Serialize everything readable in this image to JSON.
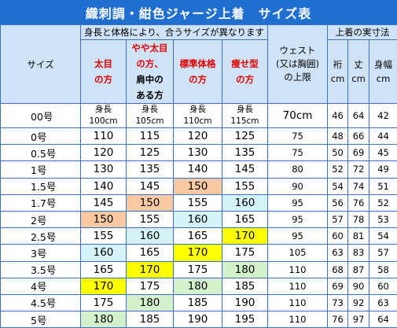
{
  "title": "織刺調・紺色ジャージ上着　サイズ表",
  "header": {
    "size": "サイズ",
    "group": "身長と体格により、合うサイズが異なります",
    "waist": "ウェスト\n(又は胸囲)\nの上限",
    "actual": "上着の実寸法",
    "m1": "裄\ncm",
    "m2": "丈\ncm",
    "m3": "身幅\ncm"
  },
  "builds": [
    "太目\nの方",
    {
      "red": "やや太目\nの方、",
      "black": "肩中の\nある方"
    },
    "標準体格\nの方",
    "痩せ型\nの方"
  ],
  "height_row": {
    "size": "00号",
    "cells": [
      "身長\n100cm",
      "身長\n105cm",
      "身長\n110cm",
      "身長\n115cm"
    ],
    "waist": "70cm",
    "m": [
      "46",
      "64",
      "42"
    ]
  },
  "rows": [
    {
      "size": "0号",
      "h": [
        "110",
        "115",
        "120",
        "125"
      ],
      "c": [
        "",
        "",
        "",
        ""
      ],
      "waist": "75",
      "m": [
        "48",
        "66",
        "44"
      ]
    },
    {
      "size": "0.5号",
      "h": [
        "120",
        "125",
        "130",
        "135"
      ],
      "c": [
        "",
        "",
        "",
        ""
      ],
      "waist": "75",
      "m": [
        "50",
        "69",
        "45"
      ]
    },
    {
      "size": "1号",
      "h": [
        "130",
        "135",
        "140",
        "145"
      ],
      "c": [
        "",
        "",
        "",
        ""
      ],
      "waist": "80",
      "m": [
        "52",
        "72",
        "49"
      ]
    },
    {
      "size": "1.5号",
      "h": [
        "140",
        "145",
        "150",
        "155"
      ],
      "c": [
        "",
        "",
        "orange",
        ""
      ],
      "waist": "90",
      "m": [
        "54",
        "74",
        "51"
      ]
    },
    {
      "size": "1.7号",
      "h": [
        "145",
        "150",
        "155",
        "160"
      ],
      "c": [
        "",
        "orange",
        "",
        "blue"
      ],
      "waist": "95",
      "m": [
        "56",
        "76",
        "52"
      ]
    },
    {
      "size": "2号",
      "h": [
        "150",
        "155",
        "160",
        "165"
      ],
      "c": [
        "orange",
        "",
        "blue",
        ""
      ],
      "waist": "95",
      "m": [
        "57",
        "78",
        "53"
      ]
    },
    {
      "size": "2.5号",
      "h": [
        "155",
        "160",
        "165",
        "170"
      ],
      "c": [
        "",
        "blue",
        "",
        "yellow"
      ],
      "waist": "95",
      "m": [
        "60",
        "81",
        "54"
      ]
    },
    {
      "size": "3号",
      "h": [
        "160",
        "165",
        "170",
        "175"
      ],
      "c": [
        "blue",
        "",
        "yellow",
        ""
      ],
      "waist": "105",
      "m": [
        "63",
        "83",
        "57"
      ]
    },
    {
      "size": "3.5号",
      "h": [
        "165",
        "170",
        "175",
        "180"
      ],
      "c": [
        "",
        "yellow",
        "",
        "green"
      ],
      "waist": "110",
      "m": [
        "68",
        "87",
        "58"
      ]
    },
    {
      "size": "4号",
      "h": [
        "170",
        "175",
        "180",
        "185"
      ],
      "c": [
        "yellow",
        "",
        "green",
        ""
      ],
      "waist": "110",
      "m": [
        "69",
        "90",
        "60"
      ]
    },
    {
      "size": "4.5号",
      "h": [
        "175",
        "180",
        "185",
        "190"
      ],
      "c": [
        "",
        "green",
        "",
        ""
      ],
      "waist": "110",
      "m": [
        "73",
        "92",
        "63"
      ]
    },
    {
      "size": "5号",
      "h": [
        "180",
        "185",
        "190",
        "195"
      ],
      "c": [
        "green",
        "",
        "",
        ""
      ],
      "waist": "110",
      "m": [
        "76",
        "97",
        "64"
      ]
    }
  ]
}
